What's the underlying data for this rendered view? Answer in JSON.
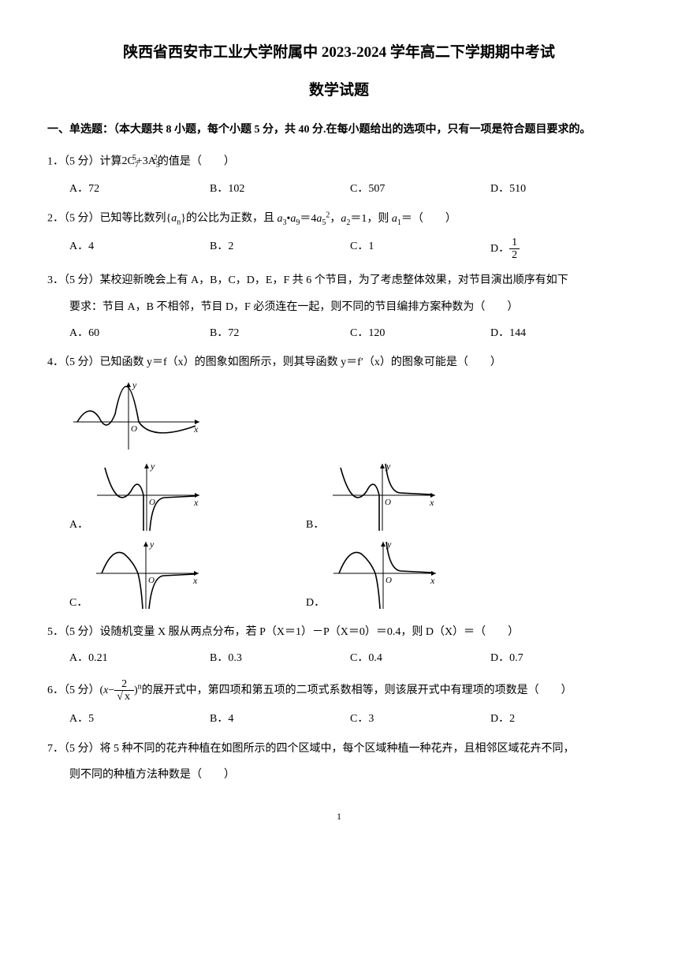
{
  "title": "陕西省西安市工业大学附属中 2023-2024 学年高二下学期期中考试",
  "subtitle": "数学试题",
  "section1_header": "一、单选题：（本大题共 8 小题，每个小题 5 分，共 40 分.在每小题给出的选项中，只有一项是符合题目要求的。",
  "q1": {
    "prefix": "1．（5 分）计算",
    "formula_html": "2C<span class='sub'>7</span><span class='sup' style='margin-left:-8px'>5</span>+3A<span class='sub'>5</span><span class='sup' style='margin-left:-8px'>2</span>",
    "suffix": "的值是（　　）",
    "A": "A．72",
    "B": "B．102",
    "C": "C．507",
    "D": "D．510"
  },
  "q2": {
    "text_before": "2．（5 分）已知等比数列{",
    "an": "a",
    "an_sub": "n",
    "text_mid": "}的公比为正数，且 ",
    "rest_html": "<span class='ital'>a</span><span class='sub'>3</span>•<span class='ital'>a</span><span class='sub'>9</span>＝4<span class='ital'>a</span><span class='sub'>5</span><span class='sup'>2</span>，<span class='ital'>a</span><span class='sub'>2</span>＝1，则 <span class='ital'>a</span><span class='sub'>1</span>＝（　　）",
    "A": "A．4",
    "B": "B．2",
    "C": "C．1",
    "D_prefix": "D．",
    "D_num": "1",
    "D_den": "2"
  },
  "q3": {
    "line1": "3．（5 分）某校迎新晚会上有 A，B，C，D，E，F 共 6 个节目，为了考虑整体效果，对节目演出顺序有如下",
    "line2": "要求：节目 A，B 不相邻，节目 D，F 必须连在一起，则不同的节目编排方案种数为（　　）",
    "A": "A．60",
    "B": "B．72",
    "C": "C．120",
    "D": "D．144"
  },
  "q4": {
    "text": "4．（5 分）已知函数 y＝f（x）的图象如图所示，则其导函数 y＝f′（x）的图象可能是（　　）",
    "labelA": "A．",
    "labelB": "B．",
    "labelC": "C．",
    "labelD": "D．",
    "graph_colors": {
      "stroke": "#000000",
      "bg": "#ffffff",
      "axis_width": 1,
      "curve_width": 1.5
    }
  },
  "q5": {
    "text": "5．（5 分）设随机变量 X 服从两点分布，若 P（X＝1）－P（X＝0）＝0.4，则 D（X）＝（　　）",
    "A": "A．0.21",
    "B": "B．0.3",
    "C": "C．0.4",
    "D": "D．0.7"
  },
  "q6": {
    "prefix": "6．（5 分）(",
    "frac_num": "2",
    "sqrt_x": "x",
    "var_x": "x",
    "close_html": ")<span class='sup'>n</span>的展开式中，第四项和第五项的二项式系数相等，则该展开式中有理项的项数是（　　）",
    "A": "A．5",
    "B": "B．4",
    "C": "C．3",
    "D": "D．2"
  },
  "q7": {
    "line1": "7．（5 分）将 5 种不同的花卉种植在如图所示的四个区域中，每个区域种植一种花卉，且相邻区域花卉不同，",
    "line2": "则不同的种植方法种数是（　　）"
  },
  "page_num": "1"
}
